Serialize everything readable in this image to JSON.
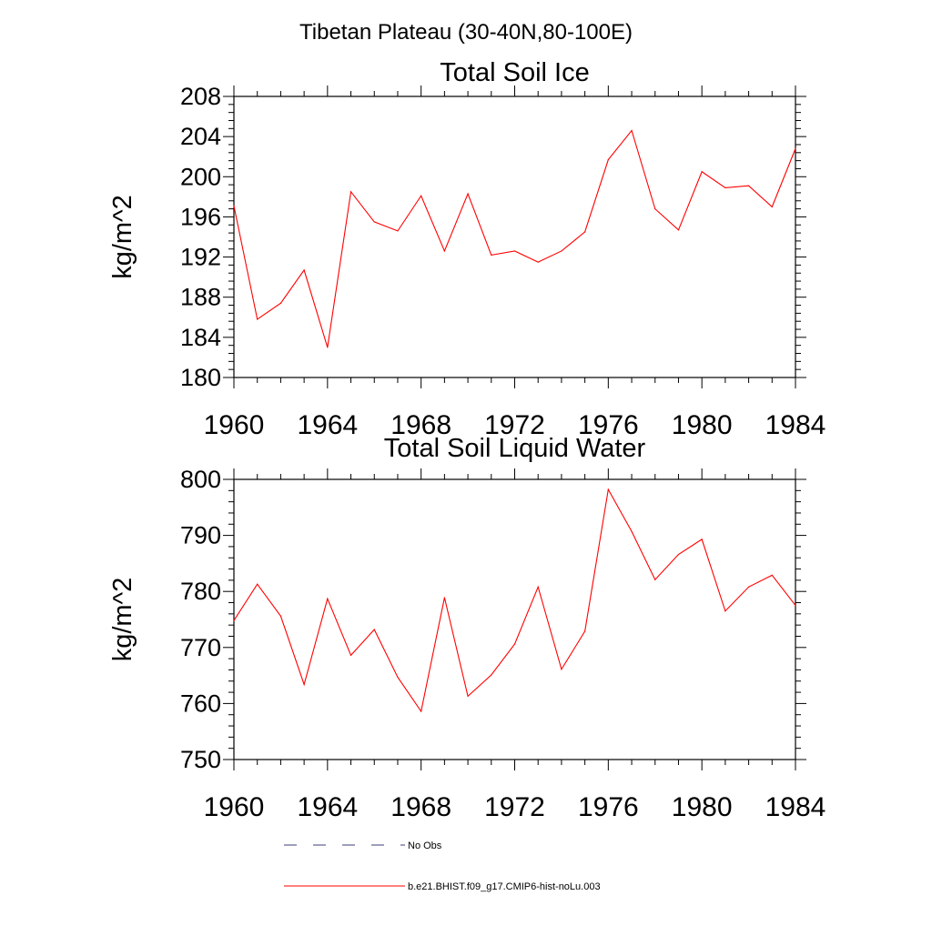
{
  "main_title": "Tibetan Plateau (30-40N,80-100E)",
  "legend": {
    "entries": [
      {
        "label": "No Obs",
        "color": "#3a3f7a",
        "style": "dashed"
      },
      {
        "label": "b.e21.BHIST.f09_g17.CMIP6-hist-noLu.003",
        "color": "#ff0000",
        "style": "solid"
      }
    ]
  },
  "chart_data": [
    {
      "type": "line",
      "title": "Total Soil Ice",
      "xlabel": "",
      "ylabel": "kg/m^2",
      "xlim": [
        1960,
        1984
      ],
      "ylim": [
        180,
        208
      ],
      "xticks": [
        1960,
        1964,
        1968,
        1972,
        1976,
        1980,
        1984
      ],
      "yticks": [
        180,
        184,
        188,
        192,
        196,
        200,
        204,
        208
      ],
      "grid": false,
      "x": [
        1960,
        1961,
        1962,
        1963,
        1964,
        1965,
        1966,
        1967,
        1968,
        1969,
        1970,
        1971,
        1972,
        1973,
        1974,
        1975,
        1976,
        1977,
        1978,
        1979,
        1980,
        1981,
        1982,
        1983,
        1984
      ],
      "series": [
        {
          "name": "b.e21.BHIST.f09_g17.CMIP6-hist-noLu.003",
          "color": "#ff0000",
          "values": [
            197.1,
            185.8,
            187.4,
            190.7,
            183.0,
            198.5,
            195.5,
            194.6,
            198.1,
            192.6,
            198.3,
            192.2,
            192.6,
            191.5,
            192.6,
            194.5,
            201.7,
            204.6,
            196.8,
            194.7,
            200.5,
            198.9,
            199.1,
            197.0,
            202.8
          ]
        }
      ]
    },
    {
      "type": "line",
      "title": "Total Soil Liquid Water",
      "xlabel": "",
      "ylabel": "kg/m^2",
      "xlim": [
        1960,
        1984
      ],
      "ylim": [
        750,
        800
      ],
      "xticks": [
        1960,
        1964,
        1968,
        1972,
        1976,
        1980,
        1984
      ],
      "yticks": [
        750,
        760,
        770,
        780,
        790,
        800
      ],
      "grid": false,
      "x": [
        1960,
        1961,
        1962,
        1963,
        1964,
        1965,
        1966,
        1967,
        1968,
        1969,
        1970,
        1971,
        1972,
        1973,
        1974,
        1975,
        1976,
        1977,
        1978,
        1979,
        1980,
        1981,
        1982,
        1983,
        1984
      ],
      "series": [
        {
          "name": "b.e21.BHIST.f09_g17.CMIP6-hist-noLu.003",
          "color": "#ff0000",
          "values": [
            774.8,
            781.3,
            775.6,
            763.4,
            778.7,
            768.6,
            773.2,
            764.7,
            758.6,
            778.9,
            761.3,
            765.1,
            770.6,
            780.8,
            766.1,
            772.9,
            798.2,
            790.7,
            782.1,
            786.6,
            789.3,
            776.5,
            780.8,
            782.9,
            777.5
          ]
        }
      ]
    }
  ]
}
